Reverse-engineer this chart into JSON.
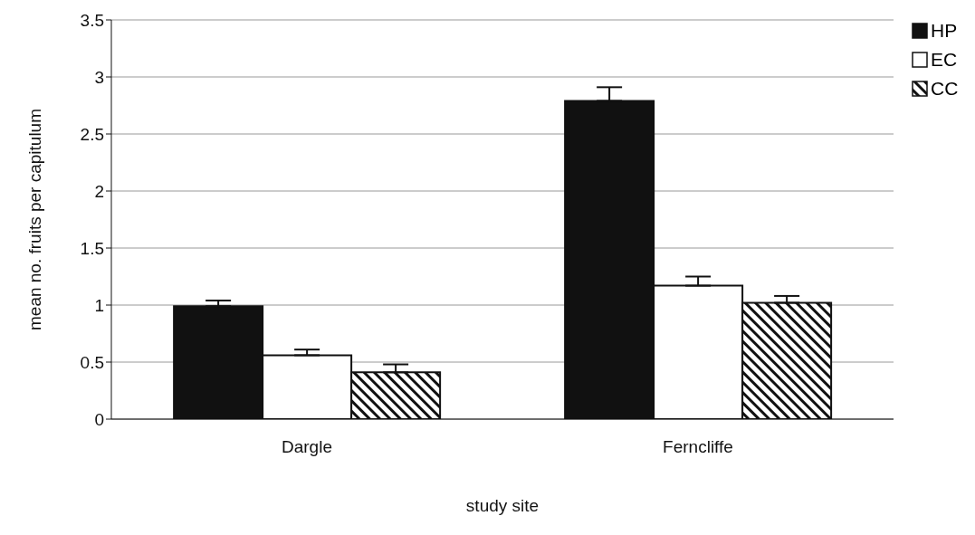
{
  "chart_data": {
    "type": "bar",
    "xlabel": "study site",
    "ylabel": "mean no. fruits per capitulum",
    "categories": [
      "Dargle",
      "Ferncliffe"
    ],
    "series": [
      {
        "name": "HP",
        "color": "#111111",
        "values": [
          0.99,
          2.79
        ],
        "errors": [
          [
            0.99,
            1.04
          ],
          [
            2.79,
            2.91
          ]
        ]
      },
      {
        "name": "EC",
        "color": "#ffffff",
        "values": [
          0.56,
          1.17
        ],
        "errors": [
          [
            0.56,
            0.61
          ],
          [
            1.17,
            1.25
          ]
        ]
      },
      {
        "name": "CC",
        "color": "#111111",
        "values": [
          0.41,
          1.02
        ],
        "errors": [
          [
            0.41,
            0.48
          ],
          [
            1.02,
            1.08
          ]
        ]
      }
    ],
    "ylim": [
      0,
      3.5
    ],
    "yticks": [
      0,
      0.5,
      1,
      1.5,
      2,
      2.5,
      3,
      3.5
    ],
    "grid": "y",
    "legend": "top right"
  }
}
